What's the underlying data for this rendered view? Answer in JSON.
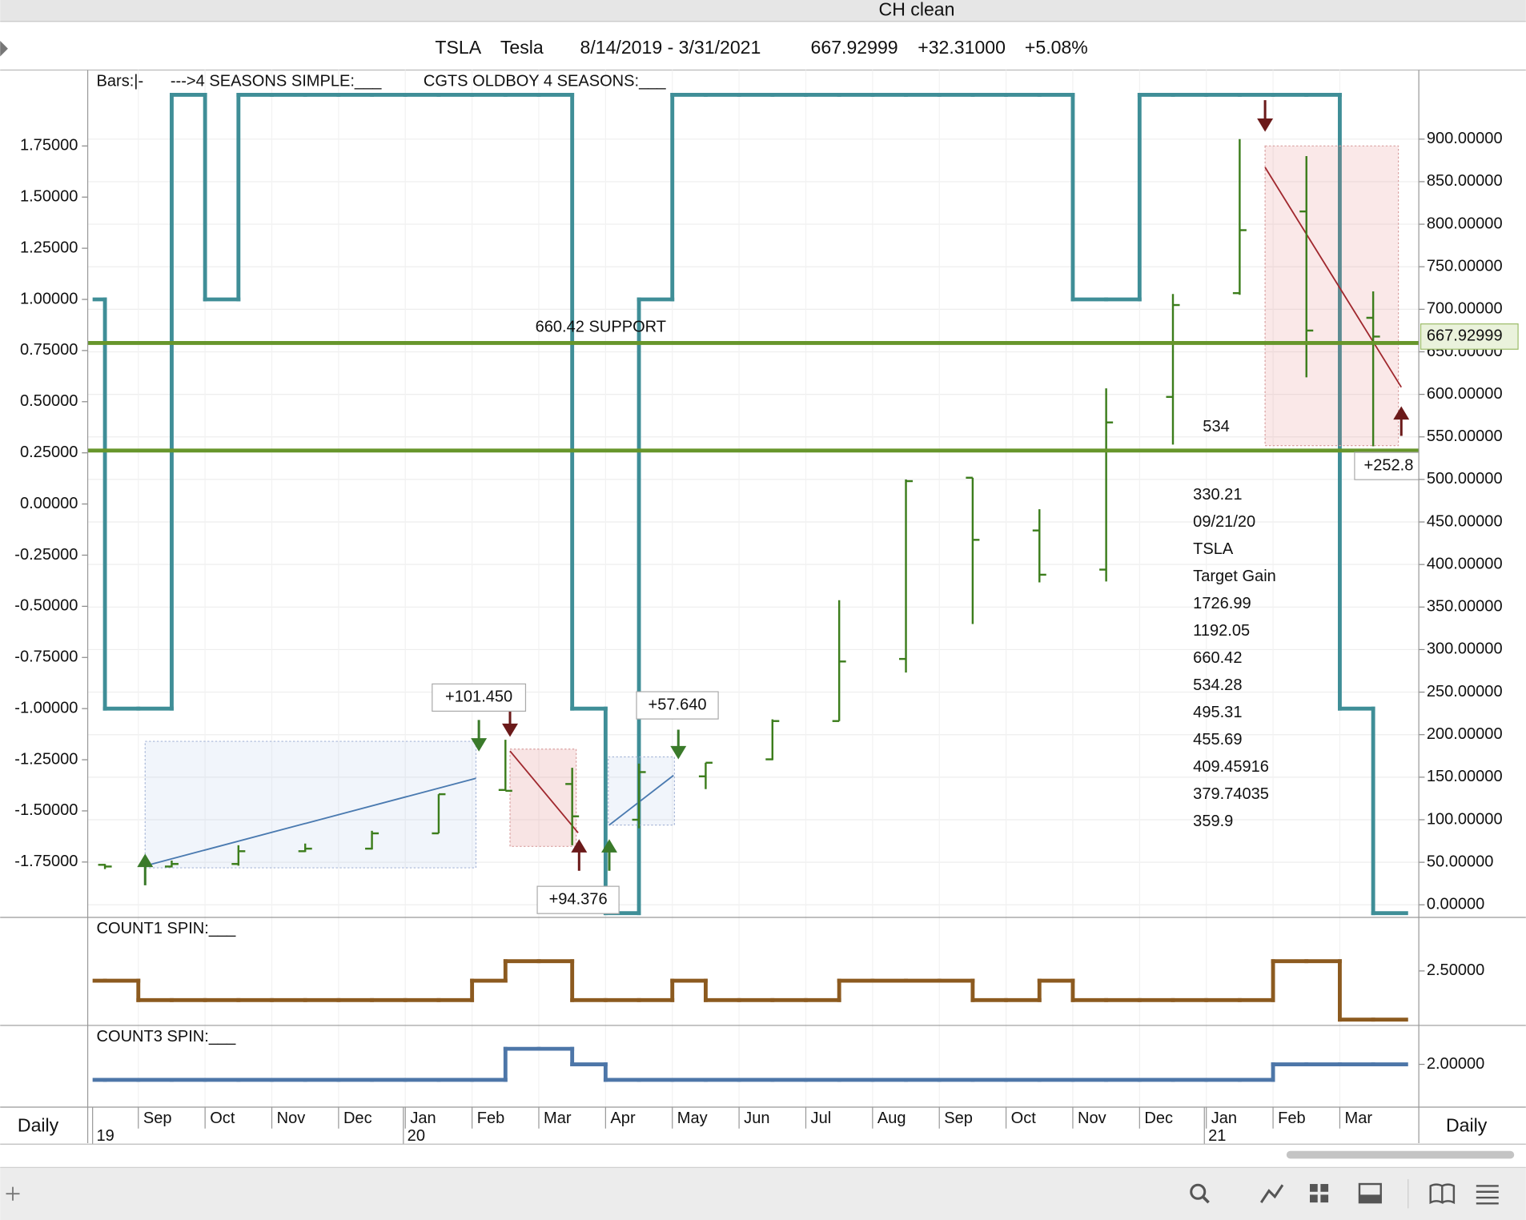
{
  "window": {
    "title": "CH clean"
  },
  "header": {
    "symbol": "TSLA",
    "name": "Tesla",
    "range": "8/14/2019 - 3/31/2021",
    "last": 667.92999,
    "change": "+32.31000",
    "change_pct": "+5.08%"
  },
  "legend": [
    "Bars:|-",
    "--->4 SEASONS SIMPLE:___",
    "CGTS OLDBOY 4 SEASONS:___"
  ],
  "timeframe": "Daily",
  "chart_data": [
    {
      "type": "ohlc",
      "categories": [
        null,
        "Sep",
        "Oct",
        "Nov",
        "Dec",
        "Jan",
        "Feb",
        "Mar",
        "Apr",
        "May",
        "Jun",
        "Jul",
        "Aug",
        "Sep",
        "Oct",
        "Nov",
        "Dec",
        "Jan",
        "Feb",
        "Mar"
      ],
      "year_labels": [
        "19",
        "20",
        "21"
      ],
      "open": [
        47,
        45,
        48,
        63,
        66,
        84,
        135,
        142,
        100,
        151,
        171,
        216,
        289,
        502,
        440,
        394,
        597,
        719,
        815,
        690
      ],
      "high": [
        48,
        52,
        70,
        72,
        87,
        130,
        194,
        161,
        166,
        167,
        218,
        358,
        500,
        502,
        465,
        607,
        718,
        900,
        880,
        721
      ],
      "low": [
        42,
        44,
        46,
        62,
        65,
        84,
        134,
        70,
        90,
        136,
        170,
        216,
        273,
        330,
        379,
        380,
        541,
        717,
        620,
        539
      ],
      "close": [
        45,
        48,
        63,
        66,
        84,
        130,
        134,
        104,
        156,
        167,
        216,
        286,
        498,
        429,
        388,
        567,
        705,
        793,
        675,
        667.93
      ],
      "color": "#3c7d1c",
      "ylim": [
        -13.7,
        981.2
      ],
      "yticks": [
        {
          "value": 0,
          "label": "0.00000"
        },
        {
          "value": 50,
          "label": "50.00000"
        },
        {
          "value": 100,
          "label": "100.00000"
        },
        {
          "value": 150,
          "label": "150.00000"
        },
        {
          "value": 200,
          "label": "200.00000"
        },
        {
          "value": 250,
          "label": "250.00000"
        },
        {
          "value": 300,
          "label": "300.00000"
        },
        {
          "value": 350,
          "label": "350.00000"
        },
        {
          "value": 400,
          "label": "400.00000"
        },
        {
          "value": 450,
          "label": "450.00000"
        },
        {
          "value": 500,
          "label": "500.00000"
        },
        {
          "value": 550,
          "label": "550.00000"
        },
        {
          "value": 600,
          "label": "600.00000"
        },
        {
          "value": 650,
          "label": "650.00000"
        },
        {
          "value": 700,
          "label": "700.00000"
        },
        {
          "value": 750,
          "label": "750.00000"
        },
        {
          "value": 800,
          "label": "800.00000"
        },
        {
          "value": 850,
          "label": "850.00000"
        },
        {
          "value": 900,
          "label": "900.00000"
        }
      ],
      "grid": true,
      "hlines": [
        {
          "value": 660.42,
          "label": "660.42 SUPPORT"
        },
        {
          "value": 534,
          "label": "534"
        }
      ],
      "hline_color": "#67962b",
      "notes": [
        "330.21",
        "09/21/20",
        "TSLA",
        "Target Gain",
        "1726.99",
        "1192.05",
        "660.42",
        "534.28",
        "495.31",
        "455.69",
        "409.45916",
        "379.74035",
        "359.9"
      ],
      "trade_labels": [
        "+101.450",
        "+94.376",
        "+57.640",
        "+252.8"
      ]
    },
    {
      "type": "step",
      "values": [
        1,
        -1,
        -1,
        2,
        1,
        2,
        2,
        2,
        2,
        2,
        2,
        2,
        2,
        2,
        2,
        -1,
        -2,
        1,
        2,
        2,
        2,
        2,
        2,
        2,
        2,
        2,
        2,
        2,
        2,
        2,
        1,
        1,
        2,
        2,
        2,
        2,
        2,
        2,
        -1,
        -2
      ],
      "color": "#3f8e97",
      "ylim": [
        -2.016,
        2.121
      ],
      "yticks": [
        {
          "value": -1.75,
          "label": "-1.75000"
        },
        {
          "value": -1.5,
          "label": "-1.50000"
        },
        {
          "value": -1.25,
          "label": "-1.25000"
        },
        {
          "value": -1,
          "label": "-1.00000"
        },
        {
          "value": -0.75,
          "label": "-0.75000"
        },
        {
          "value": -0.5,
          "label": "-0.50000"
        },
        {
          "value": -0.25,
          "label": "-0.25000"
        },
        {
          "value": 0,
          "label": "0.00000"
        },
        {
          "value": 0.25,
          "label": "0.25000"
        },
        {
          "value": 0.5,
          "label": "0.50000"
        },
        {
          "value": 0.75,
          "label": "0.75000"
        },
        {
          "value": 1,
          "label": "1.00000"
        },
        {
          "value": 1.25,
          "label": "1.25000"
        },
        {
          "value": 1.5,
          "label": "1.50000"
        },
        {
          "value": 1.75,
          "label": "1.75000"
        }
      ]
    },
    {
      "type": "step",
      "title": "COUNT1 SPIN:___",
      "values": [
        2,
        2,
        1,
        1,
        1,
        1,
        1,
        1,
        1,
        1,
        1,
        1,
        2,
        3,
        3,
        1,
        1,
        1,
        2,
        1,
        1,
        1,
        1,
        2,
        2,
        2,
        2,
        1,
        1,
        2,
        1,
        1,
        1,
        1,
        1,
        1,
        3,
        3,
        0,
        0
      ],
      "color": "#8c5a1f",
      "ylim": [
        -0.25,
        5.2
      ],
      "yticks": [
        {
          "value": 2.5,
          "label": "2.50000"
        }
      ]
    },
    {
      "type": "step",
      "title": "COUNT3 SPIN:___",
      "values": [
        1,
        1,
        1,
        1,
        1,
        1,
        1,
        1,
        1,
        1,
        1,
        1,
        1,
        3,
        3,
        2,
        1,
        1,
        1,
        1,
        1,
        1,
        1,
        1,
        1,
        1,
        1,
        1,
        1,
        1,
        1,
        1,
        1,
        1,
        1,
        1,
        2,
        2,
        2,
        2
      ],
      "color": "#4d76a8",
      "ylim": [
        -0.69,
        4.44
      ],
      "yticks": [
        {
          "value": 2,
          "label": "2.00000"
        }
      ]
    }
  ]
}
